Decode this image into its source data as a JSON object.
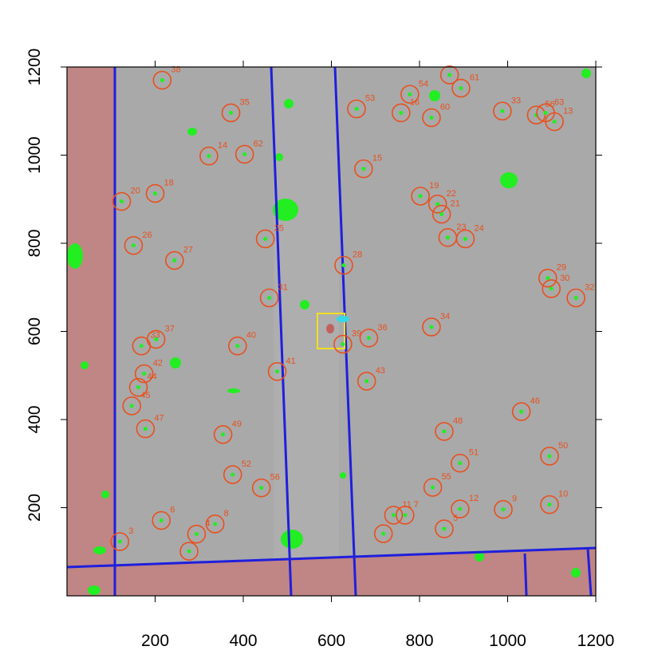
{
  "chart_data": {
    "type": "scatter",
    "xlim": [
      0,
      1200
    ],
    "ylim": [
      0,
      1200
    ],
    "xticks": [
      200,
      400,
      600,
      800,
      1000,
      1200
    ],
    "yticks": [
      200,
      400,
      600,
      800,
      1000,
      1200
    ],
    "color": "#e8501e",
    "labels": [
      "38",
      "35",
      "53",
      "54",
      "16",
      "60",
      null,
      "61",
      "33",
      "56",
      "63",
      "13",
      "14",
      "62",
      "15",
      "20",
      "18",
      "19",
      "22",
      "21",
      "26",
      "27",
      "25",
      "23",
      "24",
      "28",
      "29",
      "30",
      "32",
      "31",
      "34",
      "39",
      "36",
      "33",
      "37",
      "40",
      "41",
      "43",
      "42",
      "44",
      "45",
      "47",
      "46",
      "48",
      "49",
      "50",
      "51",
      "52",
      "56",
      "55",
      "12",
      "9",
      "10",
      "11",
      "7",
      "6",
      "8",
      "4",
      "3",
      "5",
      null,
      null
    ],
    "x": [
      216,
      372,
      657,
      778,
      758,
      827,
      868,
      894,
      988,
      1065,
      1086,
      1106,
      322,
      403,
      673,
      124,
      200,
      802,
      841,
      850,
      151,
      244,
      450,
      864,
      904,
      628,
      1091,
      1099,
      1155,
      459,
      827,
      626,
      685,
      169,
      202,
      387,
      477,
      680,
      175,
      162,
      147,
      178,
      1031,
      856,
      354,
      1095,
      892,
      376,
      441,
      830,
      892,
      990,
      1095,
      741,
      767,
      214,
      336,
      294,
      120,
      856,
      718,
      277
    ],
    "y": [
      1170,
      1096,
      1105,
      1138,
      1096,
      1085,
      1182,
      1152,
      1100,
      1091,
      1096,
      1076,
      998,
      1002,
      969,
      895,
      913,
      907,
      889,
      866,
      795,
      761,
      810,
      813,
      810,
      750,
      721,
      697,
      676,
      676,
      610,
      571,
      585,
      567,
      582,
      567,
      509,
      487,
      504,
      473,
      431,
      379,
      418,
      373,
      366,
      317,
      301,
      275,
      245,
      246,
      197,
      196,
      207,
      183,
      183,
      171,
      163,
      140,
      123,
      152,
      141,
      101
    ]
  }
}
